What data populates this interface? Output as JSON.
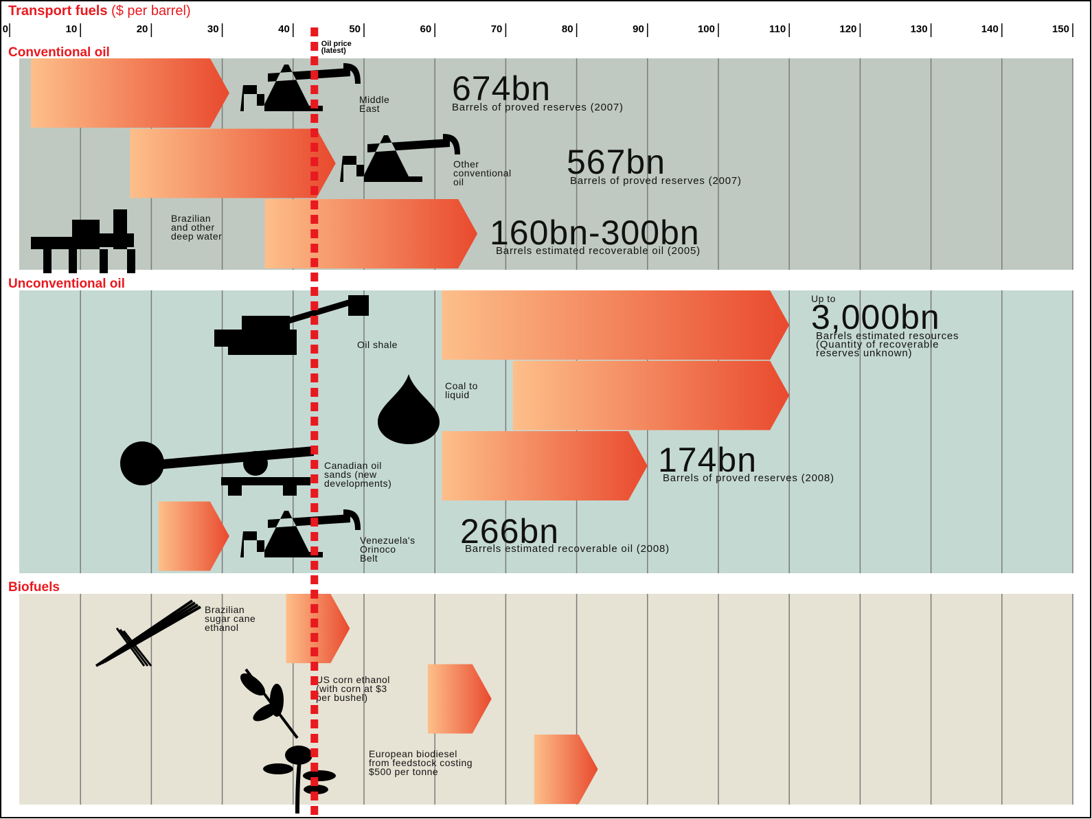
{
  "chart_data": {
    "type": "range_bar",
    "title": "Transport fuels",
    "unit": "($ per barrel)",
    "xlim": [
      0,
      150
    ],
    "xticks": [
      0,
      10,
      20,
      30,
      40,
      50,
      60,
      70,
      80,
      90,
      100,
      110,
      120,
      130,
      140,
      150
    ],
    "grid": true,
    "bar_colors": [
      "#fdbf8a",
      "#e94a2e"
    ],
    "oil_price": {
      "value": 43,
      "label": [
        "Oil price",
        "(latest)"
      ],
      "color": "#e8191f"
    },
    "groups": [
      {
        "name": "Conventional oil",
        "color": "#bfc9c1",
        "items": [
          {
            "label": [
              "Middle",
              "East"
            ],
            "low": 3,
            "high": 31,
            "reserve": "674bn",
            "note": [
              "Barrels of proved reserves (2007)"
            ]
          },
          {
            "label": [
              "Other",
              "conventional",
              "oil"
            ],
            "low": 17,
            "high": 46,
            "reserve": "567bn",
            "note": [
              "Barrels of proved reserves (2007)"
            ]
          },
          {
            "label": [
              "Brazilian",
              "and other",
              "deep water"
            ],
            "low": 36,
            "high": 66,
            "reserve": "160bn-300bn",
            "note": [
              "Barrels estimated recoverable oil (2005)"
            ]
          }
        ]
      },
      {
        "name": "Unconventional oil",
        "color": "#c5d9d3",
        "items": [
          {
            "label": [
              "Oil shale"
            ],
            "low": 61,
            "high": 110,
            "prefix": "Up to",
            "reserve": "3,000bn",
            "note": [
              "Barrels estimated resources",
              "(Quantity of recoverable",
              "reserves unknown)"
            ]
          },
          {
            "label": [
              "Coal to",
              "liquid"
            ],
            "low": 71,
            "high": 110
          },
          {
            "label": [
              "Canadian oil",
              "sands (new",
              "developments)"
            ],
            "low": 61,
            "high": 90,
            "reserve": "174bn",
            "note": [
              "Barrels of proved reserves (2008)"
            ]
          },
          {
            "label": [
              "Venezuela's",
              "Orinoco",
              "Belt"
            ],
            "low": 21,
            "high": 31,
            "reserve": "266bn",
            "note": [
              "Barrels estimated recoverable oil (2008)"
            ]
          }
        ]
      },
      {
        "name": "Biofuels",
        "color": "#e6e3d4",
        "items": [
          {
            "label": [
              "Brazilian",
              "sugar cane",
              "ethanol"
            ],
            "low": 39,
            "high": 48
          },
          {
            "label": [
              "US corn ethanol",
              "(with corn at $3",
              "per bushel)"
            ],
            "low": 59,
            "high": 68
          },
          {
            "label": [
              "European biodiesel",
              "from feedstock costing",
              "$500 per tonne"
            ],
            "low": 74,
            "high": 83
          }
        ]
      }
    ]
  }
}
